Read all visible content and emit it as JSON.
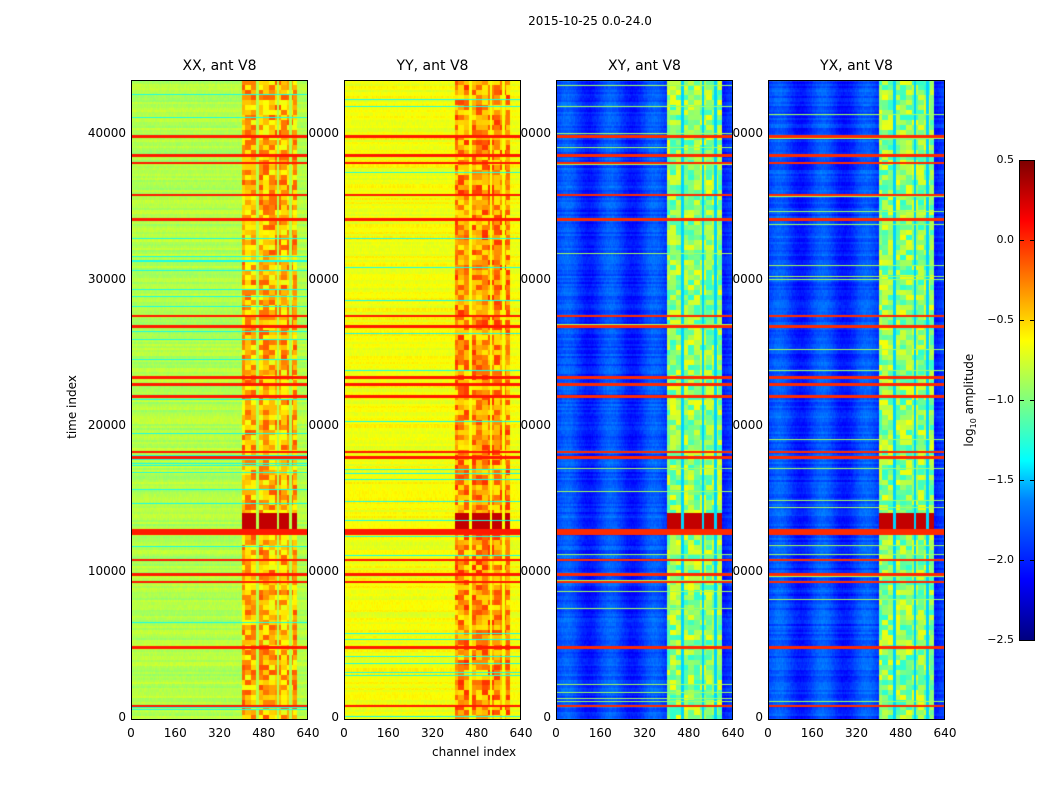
{
  "chart_data": {
    "type": "heatmap",
    "title": "2015-10-25 0.0-24.0",
    "xlabel": "channel index",
    "ylabel": "time index",
    "xlim": [
      0,
      640
    ],
    "ylim": [
      0,
      43840
    ],
    "xticks": [
      "0",
      "160",
      "320",
      "480",
      "640"
    ],
    "yticks": [
      "0",
      "10000",
      "20000",
      "30000",
      "40000"
    ],
    "ytick_values": [
      0,
      10000,
      20000,
      30000,
      40000
    ],
    "xtick_values": [
      0,
      160,
      320,
      480,
      640
    ],
    "panels": [
      {
        "title": "XX, ant V8",
        "base_log_amp": -0.85,
        "band_log_amp": -0.4
      },
      {
        "title": "YY, ant V8",
        "base_log_amp": -0.65,
        "band_log_amp": -0.3
      },
      {
        "title": "XY, ant V8",
        "base_log_amp": -1.95,
        "band_log_amp": -0.95
      },
      {
        "title": "YX, ant V8",
        "base_log_amp": -1.95,
        "band_log_amp": -0.95
      }
    ],
    "bright_channel_range": [
      400,
      600
    ],
    "rfi_time_rows": [
      1000,
      5000,
      9500,
      10000,
      11000,
      12800,
      13000,
      18000,
      18400,
      22200,
      23000,
      23500,
      27000,
      27700,
      34300,
      36000,
      38200,
      38700,
      40000
    ],
    "colorbar": {
      "label": "log10 amplitude",
      "label_main": "log",
      "label_sub": "10",
      "label_rest": " amplitude",
      "range": [
        -2.5,
        0.5
      ],
      "ticks": [
        "0.5",
        "0.0",
        "−0.5",
        "−1.0",
        "−1.5",
        "−2.0",
        "−2.5"
      ],
      "tick_values": [
        0.5,
        0.0,
        -0.5,
        -1.0,
        -1.5,
        -2.0,
        -2.5
      ],
      "colormap": "jet"
    }
  }
}
